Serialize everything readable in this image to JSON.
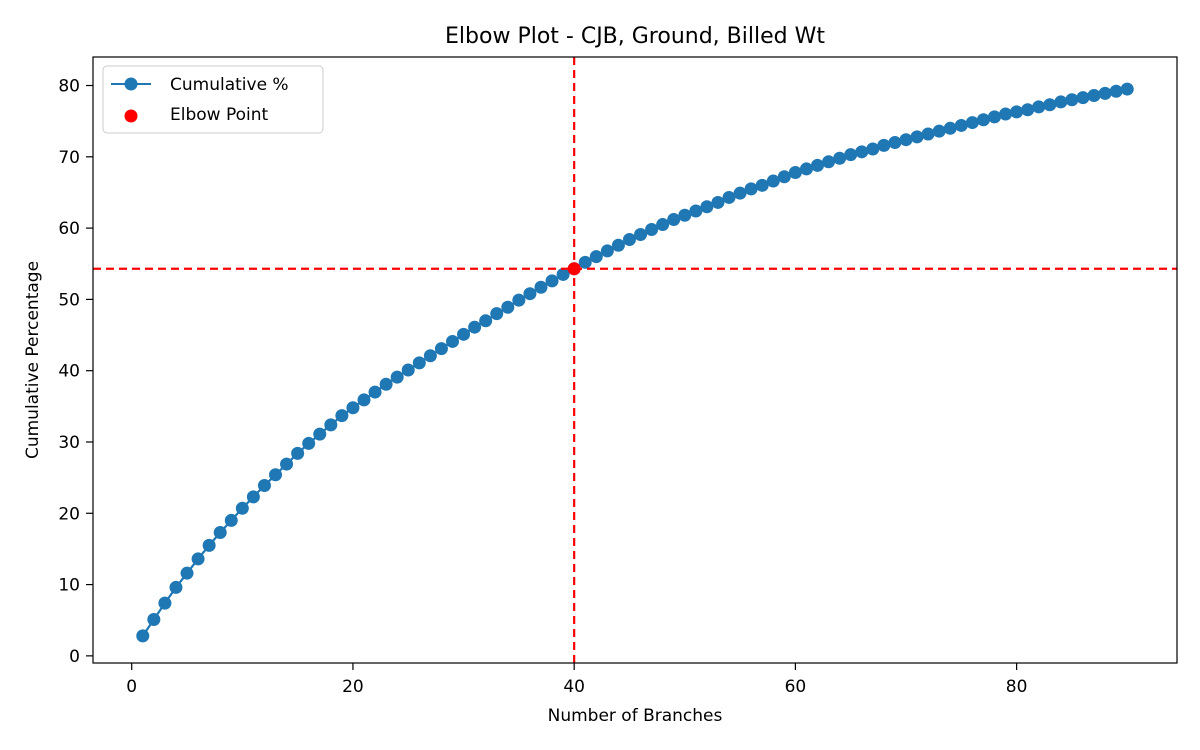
{
  "chart_data": {
    "type": "line",
    "title": "Elbow Plot - CJB, Ground, Billed Wt",
    "xlabel": "Number of Branches",
    "ylabel": "Cumulative Percentage",
    "xlim": [
      -3.5,
      94.5
    ],
    "ylim": [
      -1,
      84
    ],
    "xticks": [
      0,
      20,
      40,
      60,
      80
    ],
    "yticks": [
      0,
      10,
      20,
      30,
      40,
      50,
      60,
      70,
      80
    ],
    "grid": false,
    "legend": {
      "placement": "top-left",
      "entries": [
        "Cumulative %",
        "Elbow Point"
      ]
    },
    "series": [
      {
        "name": "Cumulative %",
        "color": "#1f77b4",
        "marker": "circle",
        "x": [
          1,
          2,
          3,
          4,
          5,
          6,
          7,
          8,
          9,
          10,
          11,
          12,
          13,
          14,
          15,
          16,
          17,
          18,
          19,
          20,
          21,
          22,
          23,
          24,
          25,
          26,
          27,
          28,
          29,
          30,
          31,
          32,
          33,
          34,
          35,
          36,
          37,
          38,
          39,
          40,
          41,
          42,
          43,
          44,
          45,
          46,
          47,
          48,
          49,
          50,
          51,
          52,
          53,
          54,
          55,
          56,
          57,
          58,
          59,
          60,
          61,
          62,
          63,
          64,
          65,
          66,
          67,
          68,
          69,
          70,
          71,
          72,
          73,
          74,
          75,
          76,
          77,
          78,
          79,
          80,
          81,
          82,
          83,
          84,
          85,
          86,
          87,
          88,
          89,
          90
        ],
        "y": [
          2.8,
          5.1,
          7.4,
          9.6,
          11.6,
          13.6,
          15.5,
          17.3,
          19.0,
          20.7,
          22.3,
          23.9,
          25.4,
          26.9,
          28.4,
          29.8,
          31.1,
          32.4,
          33.7,
          34.8,
          35.9,
          37.0,
          38.1,
          39.1,
          40.1,
          41.1,
          42.1,
          43.1,
          44.1,
          45.1,
          46.1,
          47.0,
          48.0,
          48.9,
          49.9,
          50.8,
          51.7,
          52.6,
          53.5,
          54.3,
          55.2,
          56.0,
          56.8,
          57.6,
          58.4,
          59.1,
          59.8,
          60.5,
          61.2,
          61.8,
          62.4,
          63.0,
          63.6,
          64.3,
          64.9,
          65.5,
          66.0,
          66.6,
          67.2,
          67.8,
          68.3,
          68.8,
          69.3,
          69.8,
          70.3,
          70.7,
          71.1,
          71.6,
          72.0,
          72.4,
          72.8,
          73.2,
          73.6,
          74.0,
          74.4,
          74.8,
          75.2,
          75.6,
          76.0,
          76.3,
          76.6,
          77.0,
          77.3,
          77.7,
          78.0,
          78.3,
          78.6,
          78.9,
          79.2,
          79.5
        ]
      }
    ],
    "elbow_point": {
      "name": "Elbow Point",
      "color": "#ff0000",
      "x": 40,
      "y": 54.3
    },
    "reference_lines": {
      "color": "#ff0000",
      "style": "dashed",
      "vertical_x": 40,
      "horizontal_y": 54.3
    }
  }
}
